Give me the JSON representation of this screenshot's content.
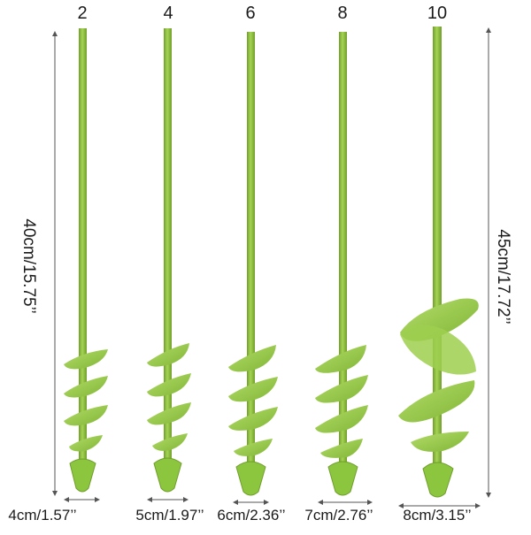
{
  "augers": [
    {
      "size_label": "2",
      "width_label": "4cm/1.57’’"
    },
    {
      "size_label": "4",
      "width_label": "5cm/1.97’’"
    },
    {
      "size_label": "6",
      "width_label": "6cm/2.36’’"
    },
    {
      "size_label": "8",
      "width_label": "7cm/2.76’’"
    },
    {
      "size_label": "10",
      "width_label": "8cm/3.15’’"
    }
  ],
  "heights": {
    "left": "40cm/15.75’’",
    "right": "45cm/17.72’’"
  },
  "colors": {
    "auger_green": "#8cc63f",
    "auger_dark": "#6f9e2a",
    "auger_light": "#b5dd6a",
    "dimension_line": "#555555"
  }
}
